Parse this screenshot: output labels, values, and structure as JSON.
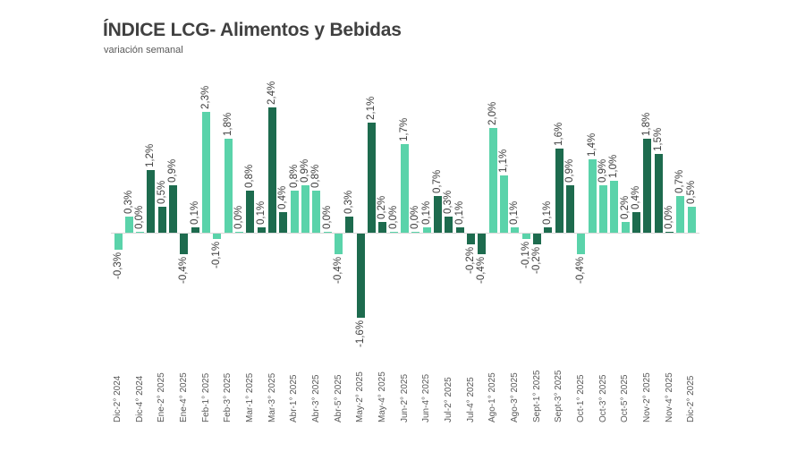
{
  "header": {
    "title": "ÍNDICE LCG- Alimentos y Bebidas",
    "subtitle": "variación semanal"
  },
  "colors": {
    "light": "#5ad3aa",
    "dark": "#1d6b4e",
    "axis": "#d9d9d9"
  },
  "chart_data": {
    "type": "bar",
    "title": "ÍNDICE LCG- Alimentos y Bebidas",
    "subtitle": "variación semanal",
    "xlabel": "",
    "ylabel": "",
    "ylim": [
      -1.6,
      2.4
    ],
    "grid": false,
    "legend": null,
    "value_format": "percent, comma decimal",
    "categories": [
      "Dic-2° 2024",
      "Dic-3° 2024",
      "Dic-4° 2024",
      "Ene-1° 2025",
      "Ene-2° 2025",
      "Ene-3° 2025",
      "Ene-4° 2025",
      "Ene-5° 2025",
      "Feb-1° 2025",
      "Feb-2° 2025",
      "Feb-3° 2025",
      "Feb-4° 2025",
      "Mar-1° 2025",
      "Mar-2° 2025",
      "Mar-3° 2025",
      "Mar-4° 2025",
      "Abr-1° 2025",
      "Abr-2° 2025",
      "Abr-3° 2025",
      "Abr-4° 2025",
      "Abr-5° 2025",
      "May-1° 2025",
      "May-2° 2025",
      "May-3° 2025",
      "May-4° 2025",
      "Jun-1° 2025",
      "Jun-2° 2025",
      "Jun-3° 2025",
      "Jun-4° 2025",
      "Jul-1° 2025",
      "Jul-2° 2025",
      "Jul-3° 2025",
      "Jul-4° 2025",
      "Jul-5° 2025",
      "Ago-1° 2025",
      "Ago-2° 2025",
      "Ago-3° 2025",
      "Ago-4° 2025",
      "Sept-1° 2025",
      "Sept-2° 2025",
      "Sept-3° 2025",
      "Sept-4° 2025",
      "Oct-1° 2025",
      "Oct-2° 2025",
      "Oct-3° 2025",
      "Oct-4° 2025",
      "Oct-5° 2025",
      "Nov-1° 2025",
      "Nov-2° 2025",
      "Nov-3° 2025",
      "Nov-4° 2025",
      "Dic-1° 2025",
      "Dic-2° 2025"
    ],
    "visible_tick_labels": [
      "Dic-2° 2024",
      "Dic-4° 2024",
      "Ene-2° 2025",
      "Ene-4° 2025",
      "Feb-1° 2025",
      "Feb-3° 2025",
      "Mar-1° 2025",
      "Mar-3° 2025",
      "Abr-1° 2025",
      "Abr-3° 2025",
      "Abr-5° 2025",
      "May-2° 2025",
      "May-4° 2025",
      "Jun-2° 2025",
      "Jun-4° 2025",
      "Jul-2° 2025",
      "Jul-4° 2025",
      "Ago-1° 2025",
      "Ago-3° 2025",
      "Sept-1° 2025",
      "Sept-3° 2025",
      "Oct-1° 2025",
      "Oct-3° 2025",
      "Oct-5° 2025",
      "Nov-2° 2025",
      "Nov-4° 2025",
      "Dic-2° 2025"
    ],
    "values": [
      -0.3,
      0.3,
      0.0,
      1.2,
      0.5,
      0.9,
      -0.4,
      0.1,
      2.3,
      -0.1,
      1.8,
      0.0,
      0.8,
      0.1,
      2.4,
      0.4,
      0.8,
      0.9,
      0.8,
      0.0,
      -0.4,
      0.3,
      -1.6,
      2.1,
      0.2,
      0.0,
      1.7,
      0.0,
      0.1,
      0.7,
      0.3,
      0.1,
      -0.2,
      -0.4,
      2.0,
      1.1,
      0.1,
      -0.1,
      -0.2,
      0.1,
      1.6,
      0.9,
      -0.4,
      1.4,
      0.9,
      1.0,
      0.2,
      0.4,
      1.8,
      1.5,
      0.0,
      0.7,
      0.5
    ],
    "bar_shade": [
      "light",
      "light",
      "light",
      "dark",
      "dark",
      "dark",
      "dark",
      "dark",
      "light",
      "light",
      "light",
      "light",
      "dark",
      "dark",
      "dark",
      "dark",
      "light",
      "light",
      "light",
      "light",
      "light",
      "dark",
      "dark",
      "dark",
      "dark",
      "light",
      "light",
      "light",
      "light",
      "dark",
      "dark",
      "dark",
      "dark",
      "dark",
      "light",
      "light",
      "light",
      "light",
      "dark",
      "dark",
      "dark",
      "dark",
      "light",
      "light",
      "light",
      "light",
      "light",
      "dark",
      "dark",
      "dark",
      "dark",
      "light",
      "light"
    ],
    "data_labels": [
      "-0,3%",
      "0,3%",
      "0,0%",
      "1,2%",
      "0,5%",
      "0,9%",
      "-0,4%",
      "0,1%",
      "2,3%",
      "-0,1%",
      "1,8%",
      "0,0%",
      "0,8%",
      "0,1%",
      "2,4%",
      "0,4%",
      "0,8%",
      "0,9%",
      "0,8%",
      "0,0%",
      "-0,4%",
      "0,3%",
      "-1,6%",
      "2,1%",
      "0,2%",
      "0,0%",
      "1,7%",
      "0,0%",
      "0,1%",
      "0,7%",
      "0,3%",
      "0,1%",
      "-0,2%",
      "-0,4%",
      "2,0%",
      "1,1%",
      "0,1%",
      "-0,1%",
      "-0,2%",
      "0,1%",
      "1,6%",
      "0,9%",
      "-0,4%",
      "1,4%",
      "0,9%",
      "1,0%",
      "0,2%",
      "0,4%",
      "1,8%",
      "1,5%",
      "0,0%",
      "0,7%",
      "0,5%"
    ]
  }
}
